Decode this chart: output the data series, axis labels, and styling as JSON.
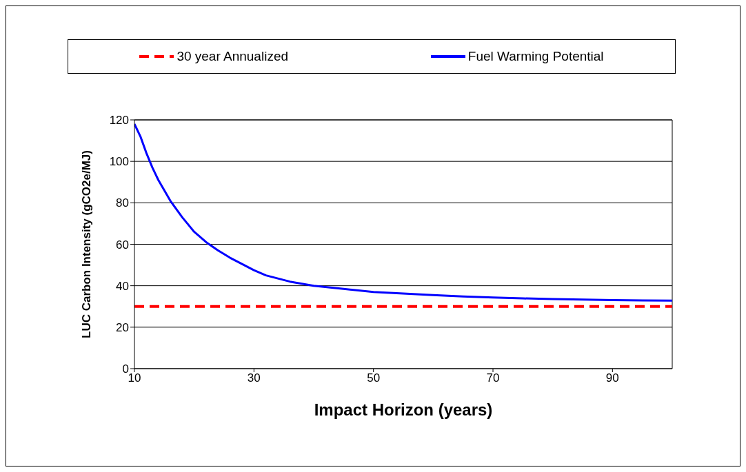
{
  "chart_data": {
    "type": "line",
    "xlabel": "Impact Horizon (years)",
    "ylabel": "LUC Carbon Intensity (gCO2e/MJ)",
    "xlim": [
      10,
      100
    ],
    "xticks": [
      10,
      30,
      50,
      70,
      90
    ],
    "ylim": [
      0,
      120
    ],
    "yticks": [
      0,
      20,
      40,
      60,
      80,
      100,
      120
    ],
    "grid": "y",
    "legend": "top",
    "marker": "none",
    "series": [
      {
        "name": "30 year Annualized",
        "color": "#ff0000",
        "line_style": "dashed",
        "x": [
          10,
          100
        ],
        "values": [
          30,
          30
        ]
      },
      {
        "name": "Fuel Warming Potential",
        "color": "#0000ff",
        "line_style": "solid",
        "x": [
          10,
          11,
          12,
          13,
          14,
          15,
          16,
          17,
          18,
          19,
          20,
          22,
          24,
          26,
          28,
          30,
          32,
          34,
          36,
          38,
          40,
          45,
          50,
          55,
          60,
          65,
          70,
          75,
          80,
          85,
          90,
          95,
          100
        ],
        "values": [
          118,
          112,
          104,
          97,
          91,
          86,
          81,
          77,
          73,
          69.5,
          66,
          61,
          57,
          53.5,
          50.5,
          47.5,
          45,
          43.5,
          42,
          41,
          40,
          38.5,
          37,
          36.2,
          35.5,
          34.8,
          34.3,
          33.9,
          33.6,
          33.3,
          33.1,
          32.9,
          32.8
        ]
      }
    ]
  }
}
